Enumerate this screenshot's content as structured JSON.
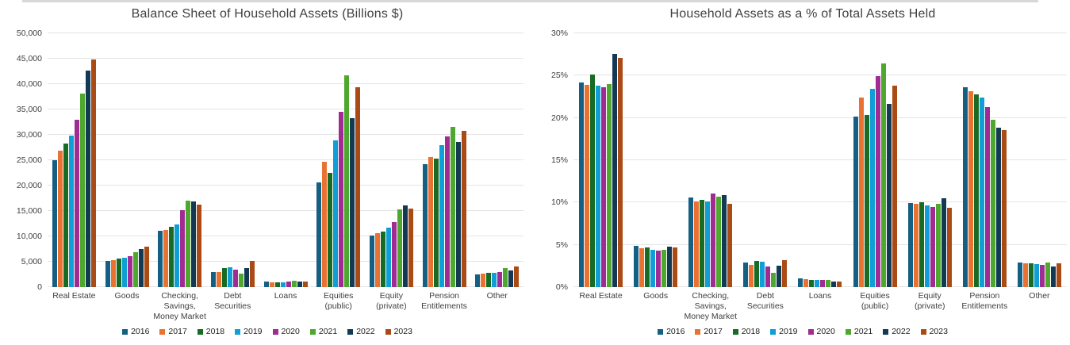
{
  "window": {
    "top_strip_color": "#d8d8d8"
  },
  "years": [
    "2016",
    "2017",
    "2018",
    "2019",
    "2020",
    "2021",
    "2022",
    "2023"
  ],
  "series_colors": [
    "#156082",
    "#E97132",
    "#196B24",
    "#0F9ED5",
    "#A02B93",
    "#4EA72E",
    "#133A54",
    "#AA4A15"
  ],
  "chart_data": [
    {
      "type": "bar",
      "title": "Balance Sheet of Household Assets (Billions $)",
      "xlabel": "",
      "ylabel": "",
      "ylim": [
        0,
        50000
      ],
      "grid": true,
      "legend_position": "bottom",
      "yticks": [
        {
          "value": 0,
          "label": "0"
        },
        {
          "value": 5000,
          "label": "5,000"
        },
        {
          "value": 10000,
          "label": "10,000"
        },
        {
          "value": 15000,
          "label": "15,000"
        },
        {
          "value": 20000,
          "label": "20,000"
        },
        {
          "value": 25000,
          "label": "25,000"
        },
        {
          "value": 30000,
          "label": "30,000"
        },
        {
          "value": 35000,
          "label": "35,000"
        },
        {
          "value": 40000,
          "label": "40,000"
        },
        {
          "value": 45000,
          "label": "45,000"
        },
        {
          "value": 50000,
          "label": "50,000"
        }
      ],
      "categories": [
        "Real Estate",
        "Goods",
        "Checking,\nSavings,\nMoney Market",
        "Debt\nSecurities",
        "Loans",
        "Equities\n(public)",
        "Equity\n(private)",
        "Pension\nEntitlements",
        "Other"
      ],
      "series": [
        {
          "name": "2016",
          "values": [
            25000,
            5200,
            11050,
            3000,
            1100,
            20700,
            10100,
            24200,
            2500
          ]
        },
        {
          "name": "2017",
          "values": [
            26800,
            5350,
            11250,
            2900,
            1000,
            24700,
            10700,
            25600,
            2600
          ]
        },
        {
          "name": "2018",
          "values": [
            28300,
            5550,
            11800,
            3700,
            1000,
            22500,
            11000,
            25300,
            2750
          ]
        },
        {
          "name": "2019",
          "values": [
            29800,
            5800,
            12400,
            3900,
            1000,
            28900,
            11700,
            27900,
            2850
          ]
        },
        {
          "name": "2020",
          "values": [
            33000,
            6100,
            15200,
            3500,
            1100,
            34500,
            12800,
            29700,
            2950
          ]
        },
        {
          "name": "2021",
          "values": [
            38200,
            6900,
            17000,
            2700,
            1200,
            41700,
            15300,
            31500,
            3800
          ]
        },
        {
          "name": "2022",
          "values": [
            42600,
            7500,
            16800,
            3800,
            1100,
            33300,
            16100,
            28600,
            3250
          ]
        },
        {
          "name": "2023",
          "values": [
            44900,
            7900,
            16300,
            5200,
            1100,
            39300,
            15400,
            30800,
            4100
          ]
        }
      ]
    },
    {
      "type": "bar",
      "title": "Household Assets as a % of Total Assets Held",
      "xlabel": "",
      "ylabel": "",
      "ylim": [
        0,
        30
      ],
      "grid": true,
      "legend_position": "bottom",
      "yticks": [
        {
          "value": 0,
          "label": "0%"
        },
        {
          "value": 5,
          "label": "5%"
        },
        {
          "value": 10,
          "label": "10%"
        },
        {
          "value": 15,
          "label": "15%"
        },
        {
          "value": 20,
          "label": "20%"
        },
        {
          "value": 25,
          "label": "25%"
        },
        {
          "value": 30,
          "label": "30%"
        }
      ],
      "categories": [
        "Real Estate",
        "Goods",
        "Checking,\nSavings,\nMoney Market",
        "Debt\nSecurities",
        "Loans",
        "Equities\n(public)",
        "Equity\n(private)",
        "Pension\nEntitlements",
        "Other"
      ],
      "series": [
        {
          "name": "2016",
          "values": [
            24.2,
            4.9,
            10.6,
            2.9,
            1.0,
            20.2,
            9.9,
            23.6,
            2.9
          ]
        },
        {
          "name": "2017",
          "values": [
            23.9,
            4.6,
            10.1,
            2.6,
            0.9,
            22.4,
            9.8,
            23.2,
            2.8
          ]
        },
        {
          "name": "2018",
          "values": [
            25.1,
            4.7,
            10.3,
            3.1,
            0.8,
            20.3,
            10.0,
            22.8,
            2.8
          ]
        },
        {
          "name": "2019",
          "values": [
            23.8,
            4.4,
            10.1,
            3.0,
            0.8,
            23.4,
            9.7,
            22.4,
            2.7
          ]
        },
        {
          "name": "2020",
          "values": [
            23.6,
            4.3,
            11.1,
            2.4,
            0.8,
            24.9,
            9.5,
            21.3,
            2.6
          ]
        },
        {
          "name": "2021",
          "values": [
            24.0,
            4.4,
            10.7,
            1.7,
            0.8,
            26.4,
            9.8,
            19.8,
            2.9
          ]
        },
        {
          "name": "2022",
          "values": [
            27.6,
            4.8,
            10.9,
            2.5,
            0.7,
            21.7,
            10.5,
            18.8,
            2.4
          ]
        },
        {
          "name": "2023",
          "values": [
            27.1,
            4.7,
            9.8,
            3.2,
            0.7,
            23.8,
            9.4,
            18.6,
            2.8
          ]
        }
      ]
    }
  ]
}
